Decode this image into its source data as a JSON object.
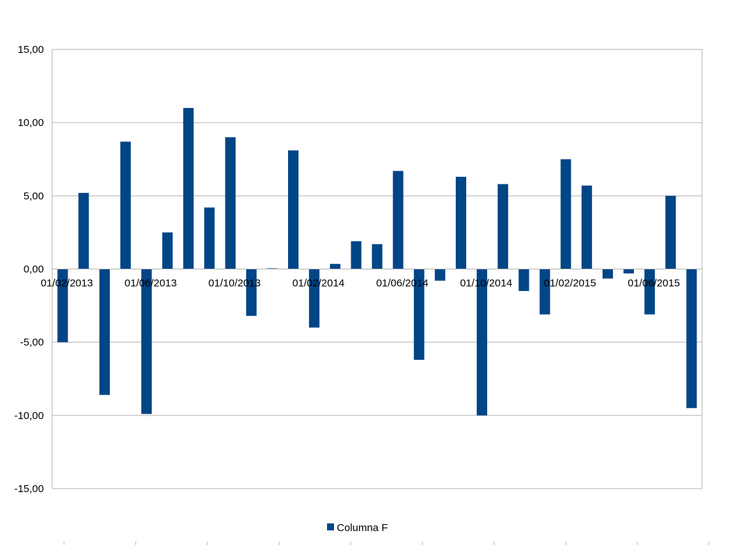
{
  "chart_data": {
    "type": "bar",
    "series": [
      {
        "name": "Columna F",
        "color": "#004586",
        "values": [
          -5.0,
          5.2,
          -8.6,
          8.7,
          -9.9,
          2.5,
          11.0,
          4.2,
          9.0,
          -3.2,
          0.05,
          8.1,
          -4.0,
          0.35,
          1.9,
          1.7,
          6.7,
          -6.2,
          -0.8,
          6.3,
          -10.0,
          5.8,
          -1.5,
          -3.1,
          7.5,
          5.7,
          -0.65,
          -0.3,
          -3.1,
          5.0,
          -9.5
        ]
      }
    ],
    "x_tick_labels": [
      "01/02/2013",
      "01/06/2013",
      "01/10/2013",
      "01/02/2014",
      "01/06/2014",
      "01/10/2014",
      "01/02/2015",
      "01/06/2015"
    ],
    "x_tick_bar_index": [
      0,
      4,
      8,
      12,
      16,
      20,
      24,
      28
    ],
    "y_ticks": [
      "15,00",
      "10,00",
      "5,00",
      "0,00",
      "-5,00",
      "-10,00",
      "-15,00"
    ],
    "y_tick_values": [
      15,
      10,
      5,
      0,
      -5,
      -10,
      -15
    ],
    "ylim": [
      -15,
      15
    ],
    "negative_tick_color": "#c9211e",
    "grid": true,
    "legend_position": "bottom-center"
  }
}
